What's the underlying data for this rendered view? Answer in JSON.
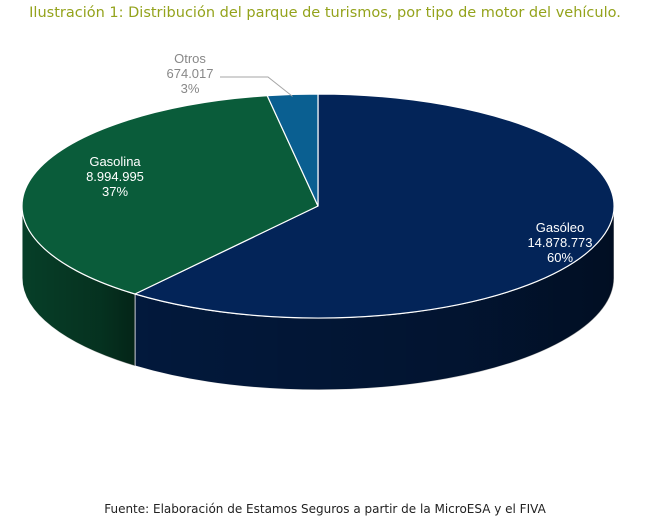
{
  "title": "Ilustración 1: Distribución del parque de turismos, por tipo de motor del vehículo.",
  "source": "Fuente: Elaboración de Estamos Seguros a partir de la MicroESA y el FIVA",
  "chart_data": {
    "type": "pie",
    "style": "3d",
    "series": [
      {
        "name": "Gasóleo",
        "value": 14878773,
        "value_label": "14.878.773",
        "percent_label": "60%",
        "color": "#032458"
      },
      {
        "name": "Gasolina",
        "value": 8994995,
        "value_label": "8.994.995",
        "percent_label": "37%",
        "color": "#0a5c3a"
      },
      {
        "name": "Otros",
        "value": 674017,
        "value_label": "674.017",
        "percent_label": "3%",
        "color": "#0a5f91"
      }
    ]
  }
}
